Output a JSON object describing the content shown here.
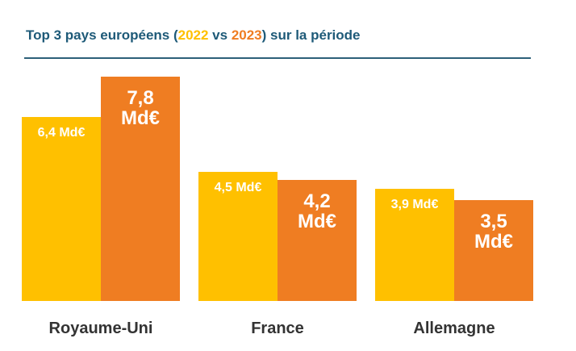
{
  "chart_data": {
    "type": "bar",
    "title_start": "Top 3 pays européens (",
    "title_middle": " vs ",
    "title_end": ") sur la période",
    "categories": [
      "Royaume-Uni",
      "France",
      "Allemagne"
    ],
    "series": [
      {
        "name": "2022",
        "color": "#ffc000",
        "values": [
          6.4,
          4.5,
          3.9
        ],
        "value_labels": [
          "6,4 Md€",
          "4,5 Md€",
          "3,9 Md€"
        ]
      },
      {
        "name": "2023",
        "color": "#ef7d22",
        "values": [
          7.8,
          4.2,
          3.5
        ],
        "value_labels": [
          "7,8 Md€",
          "4,2 Md€",
          "3,5 Md€"
        ]
      }
    ]
  }
}
